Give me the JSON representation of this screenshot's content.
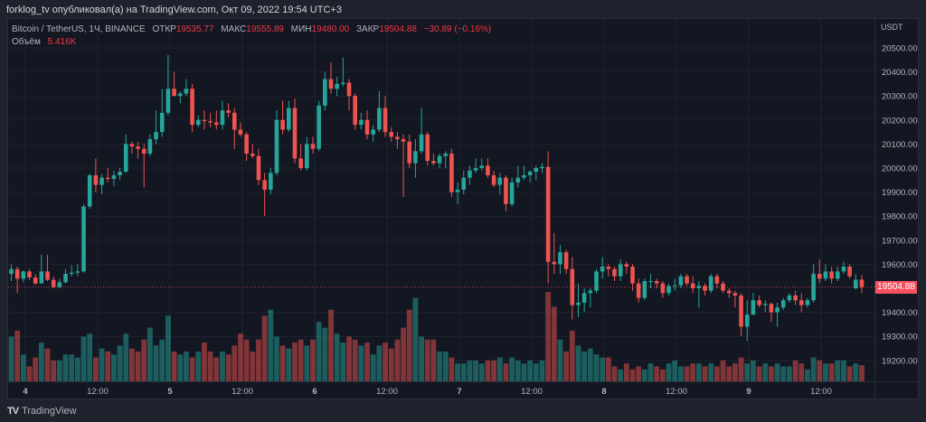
{
  "header": {
    "published": "forklog_tv опубликовал(а) на TradingView.com, Окт 09, 2022 19:54 UTC+3"
  },
  "legend": {
    "symbol": "Bitcoin / TetherUS, 1Ч, BINANCE",
    "open_label": "ОТКР",
    "open": "19535.77",
    "high_label": "МАКС",
    "high": "19555.89",
    "low_label": "МИН",
    "low": "19480.00",
    "close_label": "ЗАКР",
    "close": "19504.88",
    "change": "−30.89 (−0.16%)",
    "volume_label": "Объём",
    "volume": "5.416K"
  },
  "price_axis": {
    "currency": "USDT",
    "last_price": "19504.88",
    "ticks": [
      "20500.00",
      "20400.00",
      "20300.00",
      "20200.00",
      "20100.00",
      "20000.00",
      "19900.00",
      "19800.00",
      "19700.00",
      "19600.00",
      "19400.00",
      "19300.00",
      "19200.00"
    ]
  },
  "time_axis": {
    "ticks": [
      "4",
      "12:00",
      "5",
      "12:00",
      "6",
      "12:00",
      "7",
      "12:00",
      "8",
      "12:00",
      "9",
      "12:00"
    ]
  },
  "footer": {
    "brand": "TradingView"
  },
  "colors": {
    "up": "#26a69a",
    "down": "#ef5350",
    "background": "#131722",
    "grid": "#1f2330",
    "last_price": "#f7525f"
  },
  "chart_data": {
    "type": "candlestick",
    "interval": "1h",
    "ylim": [
      19130,
      20570
    ],
    "candles_ohlc": [
      [
        19560,
        19600,
        19530,
        19580
      ],
      [
        19580,
        19590,
        19480,
        19540
      ],
      [
        19540,
        19575,
        19525,
        19570
      ],
      [
        19570,
        19580,
        19535,
        19545
      ],
      [
        19545,
        19560,
        19515,
        19520
      ],
      [
        19520,
        19640,
        19520,
        19570
      ],
      [
        19570,
        19640,
        19530,
        19535
      ],
      [
        19535,
        19550,
        19500,
        19505
      ],
      [
        19505,
        19540,
        19500,
        19525
      ],
      [
        19525,
        19580,
        19520,
        19560
      ],
      [
        19560,
        19595,
        19550,
        19565
      ],
      [
        19565,
        19600,
        19550,
        19570
      ],
      [
        19570,
        19850,
        19565,
        19840
      ],
      [
        19840,
        19975,
        19830,
        19970
      ],
      [
        19970,
        20040,
        19900,
        19930
      ],
      [
        19930,
        19975,
        19890,
        19960
      ],
      [
        19960,
        20000,
        19940,
        19955
      ],
      [
        19955,
        19990,
        19925,
        19970
      ],
      [
        19970,
        20000,
        19950,
        19985
      ],
      [
        19985,
        20140,
        19980,
        20100
      ],
      [
        20100,
        20110,
        20060,
        20090
      ],
      [
        20090,
        20110,
        20040,
        20080
      ],
      [
        20080,
        20100,
        19920,
        20060
      ],
      [
        20060,
        20140,
        20050,
        20120
      ],
      [
        20120,
        20240,
        20100,
        20150
      ],
      [
        20150,
        20330,
        20130,
        20230
      ],
      [
        20230,
        20470,
        20220,
        20330
      ],
      [
        20330,
        20400,
        20310,
        20300
      ],
      [
        20300,
        20320,
        20270,
        20310
      ],
      [
        20310,
        20370,
        20300,
        20330
      ],
      [
        20330,
        20350,
        20150,
        20180
      ],
      [
        20180,
        20220,
        20170,
        20200
      ],
      [
        20200,
        20240,
        20160,
        20195
      ],
      [
        20195,
        20230,
        20170,
        20190
      ],
      [
        20190,
        20240,
        20160,
        20180
      ],
      [
        20180,
        20280,
        20160,
        20240
      ],
      [
        20240,
        20270,
        20210,
        20230
      ],
      [
        20230,
        20250,
        20080,
        20160
      ],
      [
        20160,
        20190,
        20130,
        20140
      ],
      [
        20140,
        20150,
        20030,
        20060
      ],
      [
        20060,
        20100,
        20040,
        20050
      ],
      [
        20050,
        20080,
        19930,
        19950
      ],
      [
        19950,
        19980,
        19800,
        19910
      ],
      [
        19910,
        20000,
        19890,
        19980
      ],
      [
        19980,
        20240,
        19970,
        20200
      ],
      [
        20200,
        20280,
        20140,
        20160
      ],
      [
        20160,
        20280,
        20150,
        20250
      ],
      [
        20250,
        20290,
        20020,
        20040
      ],
      [
        20040,
        20100,
        19990,
        20000
      ],
      [
        20000,
        20130,
        19990,
        20100
      ],
      [
        20100,
        20130,
        20060,
        20080
      ],
      [
        20080,
        20280,
        20070,
        20260
      ],
      [
        20260,
        20400,
        20240,
        20370
      ],
      [
        20370,
        20440,
        20310,
        20330
      ],
      [
        20330,
        20380,
        20300,
        20350
      ],
      [
        20350,
        20460,
        20340,
        20355
      ],
      [
        20355,
        20370,
        20240,
        20300
      ],
      [
        20300,
        20310,
        20160,
        20180
      ],
      [
        20180,
        20230,
        20160,
        20200
      ],
      [
        20200,
        20240,
        20120,
        20140
      ],
      [
        20140,
        20180,
        20110,
        20160
      ],
      [
        20160,
        20320,
        20150,
        20250
      ],
      [
        20250,
        20300,
        20130,
        20150
      ],
      [
        20150,
        20170,
        20110,
        20130
      ],
      [
        20130,
        20150,
        20080,
        20120
      ],
      [
        20120,
        20140,
        19880,
        20110
      ],
      [
        20110,
        20140,
        20000,
        20020
      ],
      [
        20020,
        20120,
        19960,
        20070
      ],
      [
        20070,
        20250,
        20060,
        20140
      ],
      [
        20140,
        20150,
        20010,
        20030
      ],
      [
        20030,
        20060,
        20010,
        20020
      ],
      [
        20020,
        20060,
        20000,
        20050
      ],
      [
        20050,
        20070,
        20000,
        20060
      ],
      [
        20060,
        20080,
        19880,
        19900
      ],
      [
        19900,
        19940,
        19850,
        19910
      ],
      [
        19910,
        19990,
        19890,
        19960
      ],
      [
        19960,
        20010,
        19930,
        19990
      ],
      [
        19990,
        20040,
        19980,
        20000
      ],
      [
        20000,
        20040,
        19990,
        20010
      ],
      [
        20010,
        20040,
        19960,
        19970
      ],
      [
        19970,
        19990,
        19920,
        19930
      ],
      [
        19930,
        19980,
        19890,
        19960
      ],
      [
        19960,
        19970,
        19820,
        19850
      ],
      [
        19850,
        19960,
        19840,
        19940
      ],
      [
        19940,
        20010,
        19920,
        19960
      ],
      [
        19960,
        20010,
        19950,
        19970
      ],
      [
        19970,
        19990,
        19940,
        19985
      ],
      [
        19985,
        20010,
        19950,
        20000
      ],
      [
        20000,
        20020,
        19980,
        20005
      ],
      [
        20005,
        20070,
        19520,
        19610
      ],
      [
        19610,
        19730,
        19560,
        19600
      ],
      [
        19600,
        19680,
        19560,
        19650
      ],
      [
        19650,
        19660,
        19560,
        19580
      ],
      [
        19580,
        19630,
        19370,
        19430
      ],
      [
        19430,
        19520,
        19380,
        19440
      ],
      [
        19440,
        19500,
        19400,
        19480
      ],
      [
        19480,
        19500,
        19420,
        19490
      ],
      [
        19490,
        19580,
        19480,
        19570
      ],
      [
        19570,
        19630,
        19540,
        19590
      ],
      [
        19590,
        19600,
        19550,
        19580
      ],
      [
        19580,
        19590,
        19530,
        19550
      ],
      [
        19550,
        19620,
        19530,
        19600
      ],
      [
        19600,
        19610,
        19560,
        19590
      ],
      [
        19590,
        19600,
        19490,
        19520
      ],
      [
        19520,
        19540,
        19440,
        19460
      ],
      [
        19460,
        19540,
        19450,
        19530
      ],
      [
        19530,
        19560,
        19500,
        19530
      ],
      [
        19530,
        19540,
        19500,
        19520
      ],
      [
        19520,
        19530,
        19460,
        19480
      ],
      [
        19480,
        19520,
        19470,
        19510
      ],
      [
        19510,
        19540,
        19490,
        19512
      ],
      [
        19512,
        19560,
        19500,
        19550
      ],
      [
        19550,
        19560,
        19510,
        19520
      ],
      [
        19520,
        19550,
        19480,
        19500
      ],
      [
        19500,
        19530,
        19420,
        19510
      ],
      [
        19510,
        19520,
        19470,
        19490
      ],
      [
        19490,
        19560,
        19480,
        19550
      ],
      [
        19550,
        19560,
        19500,
        19520
      ],
      [
        19520,
        19530,
        19480,
        19490
      ],
      [
        19490,
        19500,
        19460,
        19480
      ],
      [
        19480,
        19490,
        19420,
        19470
      ],
      [
        19470,
        19480,
        19300,
        19340
      ],
      [
        19340,
        19450,
        19280,
        19390
      ],
      [
        19390,
        19480,
        19390,
        19450
      ],
      [
        19450,
        19470,
        19420,
        19430
      ],
      [
        19430,
        19450,
        19400,
        19435
      ],
      [
        19435,
        19440,
        19360,
        19400
      ],
      [
        19400,
        19440,
        19340,
        19420
      ],
      [
        19420,
        19460,
        19410,
        19450
      ],
      [
        19450,
        19480,
        19440,
        19470
      ],
      [
        19470,
        19490,
        19430,
        19450
      ],
      [
        19450,
        19480,
        19400,
        19430
      ],
      [
        19430,
        19460,
        19420,
        19450
      ],
      [
        19450,
        19600,
        19440,
        19560
      ],
      [
        19560,
        19620,
        19520,
        19540
      ],
      [
        19540,
        19600,
        19530,
        19570
      ],
      [
        19570,
        19590,
        19520,
        19540
      ],
      [
        19540,
        19590,
        19530,
        19570
      ],
      [
        19570,
        19610,
        19560,
        19590
      ],
      [
        19590,
        19600,
        19540,
        19550
      ],
      [
        19500,
        19560,
        19495,
        19535.77
      ],
      [
        19535.77,
        19555.89,
        19480,
        19504.88
      ]
    ],
    "volume_k": [
      15,
      17,
      9,
      5,
      8,
      13,
      11,
      7,
      7,
      9,
      9,
      8,
      15,
      16,
      8,
      11,
      10,
      9,
      12,
      16,
      11,
      10,
      14,
      18,
      12,
      14,
      22,
      10,
      9,
      10,
      8,
      10,
      13,
      10,
      8,
      10,
      9,
      12,
      16,
      14,
      10,
      14,
      22,
      24,
      15,
      12,
      11,
      13,
      14,
      12,
      14,
      20,
      18,
      24,
      16,
      13,
      15,
      14,
      12,
      13,
      9,
      12,
      13,
      11,
      14,
      18,
      24,
      28,
      15,
      14,
      14,
      10,
      10,
      8,
      6,
      6,
      7,
      7,
      6,
      7,
      7,
      8,
      6,
      8,
      7,
      6,
      7,
      6,
      7,
      30,
      25,
      14,
      10,
      17,
      12,
      10,
      11,
      9,
      8,
      8,
      5,
      4,
      6,
      4,
      5,
      4,
      6,
      5,
      4,
      6,
      7,
      5,
      5,
      6,
      6,
      5,
      6,
      5,
      7,
      5,
      6,
      8,
      6,
      7,
      5,
      6,
      5,
      6,
      5,
      5,
      7,
      6,
      4,
      8,
      7,
      6,
      6,
      7,
      7,
      5,
      6,
      5.416
    ]
  }
}
